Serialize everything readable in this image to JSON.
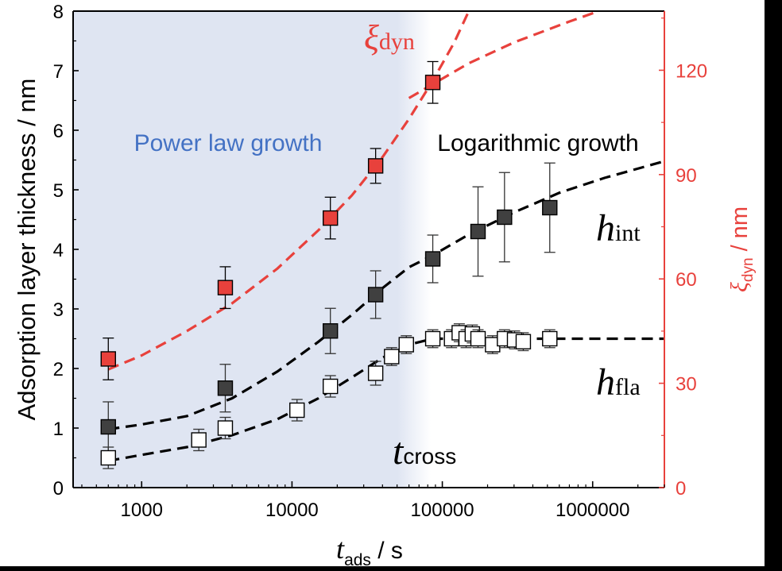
{
  "chart_data": {
    "type": "scatter",
    "x_scale": "log",
    "xlim": [
      350,
      3000000
    ],
    "ylim_left": [
      0,
      8
    ],
    "ylim_right": [
      0,
      137
    ],
    "x_ticks": [
      1000,
      10000,
      100000,
      1000000
    ],
    "x_tick_labels": [
      "1000",
      "10000",
      "100000",
      "1000000"
    ],
    "y_ticks_left": [
      0,
      1,
      2,
      3,
      4,
      5,
      6,
      7,
      8
    ],
    "y_tick_labels_left": [
      "0",
      "1",
      "2",
      "3",
      "4",
      "5",
      "6",
      "7",
      "8"
    ],
    "y_ticks_right": [
      0,
      30,
      60,
      90,
      120
    ],
    "y_tick_labels_right": [
      "0",
      "30",
      "60",
      "90",
      "120"
    ],
    "xlabel": {
      "main": "t",
      "sub": "ads",
      "unit": " / s"
    },
    "ylabel_left": "Adsorption layer thickness / nm",
    "ylabel_right": {
      "main": "ξ",
      "sub": "dyn",
      "unit": " / nm"
    },
    "regions": [
      {
        "label": "Power law growth",
        "x_start": 350,
        "x_end": 65000,
        "color": "#dfe5f2",
        "label_color": "#4472c4"
      },
      {
        "label": "Logarithmic growth",
        "color": "#000000"
      }
    ],
    "series": [
      {
        "name": "h_int",
        "label_main": "h",
        "label_sub": "int",
        "axis": "left",
        "marker": "filled-square",
        "color": "#404040",
        "points": [
          {
            "x": 600,
            "y": 1.02,
            "err": 0.42
          },
          {
            "x": 3600,
            "y": 1.67,
            "err": 0.4
          },
          {
            "x": 18000,
            "y": 2.63,
            "err": 0.38
          },
          {
            "x": 36000,
            "y": 3.24,
            "err": 0.4
          },
          {
            "x": 86400,
            "y": 3.84,
            "err": 0.4
          },
          {
            "x": 172800,
            "y": 4.3,
            "err": 0.75
          },
          {
            "x": 259200,
            "y": 4.54,
            "err": 0.75
          },
          {
            "x": 518400,
            "y": 4.7,
            "err": 0.75
          }
        ]
      },
      {
        "name": "h_fla",
        "label_main": "h",
        "label_sub": "fla",
        "axis": "left",
        "marker": "open-square",
        "color": "#000000",
        "points": [
          {
            "x": 600,
            "y": 0.5,
            "err": 0.18
          },
          {
            "x": 2400,
            "y": 0.8,
            "err": 0.18
          },
          {
            "x": 3600,
            "y": 1.0,
            "err": 0.18
          },
          {
            "x": 10800,
            "y": 1.3,
            "err": 0.18
          },
          {
            "x": 18000,
            "y": 1.7,
            "err": 0.18
          },
          {
            "x": 36000,
            "y": 1.92,
            "err": 0.2
          },
          {
            "x": 46000,
            "y": 2.2,
            "err": 0.15
          },
          {
            "x": 57600,
            "y": 2.4,
            "err": 0.15
          },
          {
            "x": 86400,
            "y": 2.5,
            "err": 0.15
          },
          {
            "x": 115200,
            "y": 2.5,
            "err": 0.15
          },
          {
            "x": 129600,
            "y": 2.6,
            "err": 0.15
          },
          {
            "x": 144000,
            "y": 2.5,
            "err": 0.15
          },
          {
            "x": 158400,
            "y": 2.58,
            "err": 0.15
          },
          {
            "x": 172800,
            "y": 2.5,
            "err": 0.15
          },
          {
            "x": 216000,
            "y": 2.4,
            "err": 0.15
          },
          {
            "x": 259200,
            "y": 2.5,
            "err": 0.15
          },
          {
            "x": 302400,
            "y": 2.48,
            "err": 0.15
          },
          {
            "x": 345600,
            "y": 2.45,
            "err": 0.15
          },
          {
            "x": 518400,
            "y": 2.5,
            "err": 0.15
          }
        ]
      },
      {
        "name": "xi_dyn",
        "label_main": "ξ",
        "label_sub": "dyn",
        "axis": "right",
        "marker": "filled-square",
        "color": "#e8413c",
        "points": [
          {
            "x": 600,
            "y": 37,
            "err": 6
          },
          {
            "x": 3600,
            "y": 57.5,
            "err": 6
          },
          {
            "x": 18000,
            "y": 77.5,
            "err": 6
          },
          {
            "x": 36000,
            "y": 92.5,
            "err": 5
          },
          {
            "x": 86400,
            "y": 116.5,
            "err": 6
          }
        ]
      }
    ],
    "fit_lines": [
      {
        "series": "h_int",
        "style": "dashed",
        "color": "#000000",
        "points": [
          [
            600,
            0.98
          ],
          [
            1000,
            1.06
          ],
          [
            2000,
            1.2
          ],
          [
            4000,
            1.5
          ],
          [
            8000,
            1.95
          ],
          [
            15000,
            2.45
          ],
          [
            25000,
            2.9
          ],
          [
            40000,
            3.35
          ],
          [
            60000,
            3.7
          ],
          [
            86400,
            3.9
          ],
          [
            150000,
            4.25
          ],
          [
            300000,
            4.62
          ],
          [
            600000,
            4.95
          ],
          [
            1200000,
            5.2
          ],
          [
            3000000,
            5.48
          ]
        ]
      },
      {
        "series": "h_fla",
        "style": "dashed",
        "color": "#000000",
        "points": [
          [
            600,
            0.45
          ],
          [
            1000,
            0.55
          ],
          [
            2000,
            0.68
          ],
          [
            4000,
            0.88
          ],
          [
            8000,
            1.15
          ],
          [
            15000,
            1.5
          ],
          [
            25000,
            1.85
          ],
          [
            40000,
            2.18
          ],
          [
            60000,
            2.4
          ],
          [
            86400,
            2.5
          ],
          [
            3000000,
            2.5
          ]
        ]
      },
      {
        "series": "xi_dyn",
        "style": "dashed",
        "color": "#e8413c",
        "axis": "right",
        "points": [
          [
            600,
            34
          ],
          [
            1000,
            38
          ],
          [
            2000,
            45
          ],
          [
            4000,
            53
          ],
          [
            8000,
            63
          ],
          [
            15000,
            74
          ],
          [
            25000,
            84
          ],
          [
            40000,
            95
          ],
          [
            60000,
            106
          ],
          [
            86400,
            117
          ],
          [
            120000,
            128
          ],
          [
            150000,
            137
          ]
        ]
      },
      {
        "series": "xi_dyn",
        "style": "dashed",
        "color": "#e8413c",
        "axis": "right",
        "points": [
          [
            60000,
            112
          ],
          [
            86400,
            116
          ],
          [
            150000,
            122
          ],
          [
            300000,
            128
          ],
          [
            700000,
            134
          ],
          [
            1100000,
            137
          ]
        ]
      }
    ],
    "annotations": [
      {
        "text_main": "t",
        "text_sub": "cross",
        "x": 80000,
        "y": 0.5
      }
    ]
  }
}
